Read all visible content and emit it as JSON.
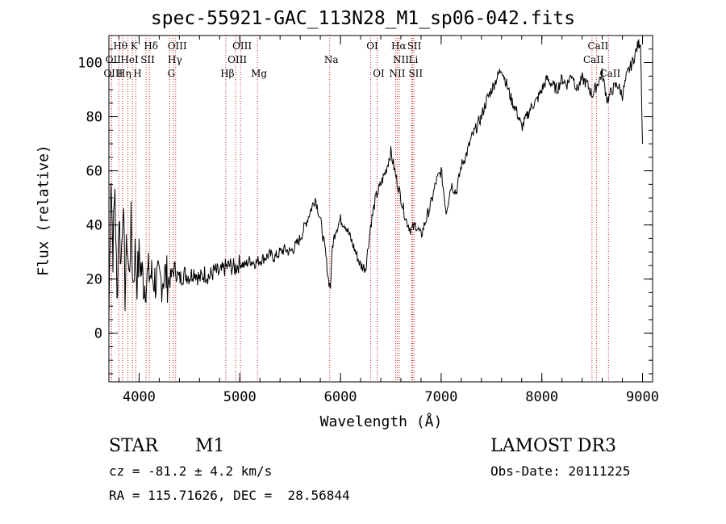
{
  "title": "spec-55921-GAC_113N28_M1_sp06-042.fits",
  "object_type": "STAR",
  "subclass": "M1",
  "survey": "LAMOST DR3",
  "cz": "cz = -81.2 ± 4.2 km/s",
  "obs_date": "Obs-Date: 20111225",
  "coords": "RA = 115.71626, DEC =  28.56844",
  "chart_data": {
    "type": "line",
    "xlabel": "Wavelength (Å)",
    "ylabel": "Flux (relative)",
    "xlim": [
      3700,
      9100
    ],
    "ylim": [
      -18,
      110
    ],
    "x_ticks": [
      4000,
      5000,
      6000,
      7000,
      8000,
      9000
    ],
    "y_ticks": [
      0,
      20,
      40,
      60,
      80,
      100
    ],
    "line_color": "#000000",
    "marker_color": "#cc2222",
    "series": [
      {
        "x": [
          3700,
          3720,
          3740,
          3760,
          3780,
          3800,
          3820,
          3840,
          3860,
          3880,
          3900,
          3920,
          3940,
          3960,
          3980,
          4000,
          4050,
          4100,
          4150,
          4200,
          4250,
          4300,
          4350,
          4400,
          4450,
          4500,
          4550,
          4600,
          4650,
          4700,
          4750,
          4800,
          4850,
          4900,
          4950,
          5000,
          5050,
          5100,
          5150,
          5200,
          5250,
          5300,
          5350,
          5400,
          5450,
          5500,
          5550,
          5600,
          5650,
          5700,
          5750,
          5800,
          5850,
          5880,
          5900,
          5920,
          5950,
          6000,
          6050,
          6100,
          6150,
          6200,
          6250,
          6300,
          6350,
          6400,
          6450,
          6500,
          6550,
          6600,
          6650,
          6700,
          6750,
          6800,
          6850,
          6900,
          6950,
          7000,
          7050,
          7100,
          7150,
          7200,
          7250,
          7300,
          7350,
          7400,
          7450,
          7500,
          7550,
          7600,
          7650,
          7700,
          7750,
          7800,
          7850,
          7900,
          7950,
          8000,
          8050,
          8100,
          8150,
          8200,
          8250,
          8300,
          8350,
          8400,
          8450,
          8500,
          8550,
          8600,
          8650,
          8700,
          8750,
          8800,
          8850,
          8900,
          8950,
          8980,
          9000
        ],
        "y": [
          5,
          60,
          30,
          55,
          10,
          45,
          25,
          50,
          15,
          35,
          20,
          40,
          18,
          30,
          20,
          28,
          18,
          22,
          20,
          18,
          22,
          19,
          24,
          20,
          22,
          21,
          23,
          20,
          22,
          21,
          23,
          22,
          24,
          25,
          24,
          26,
          25,
          27,
          26,
          27,
          28,
          29,
          28,
          30,
          31,
          30,
          32,
          35,
          40,
          45,
          50,
          42,
          30,
          20,
          17,
          32,
          38,
          42,
          40,
          35,
          30,
          25,
          24,
          40,
          50,
          55,
          60,
          67,
          58,
          50,
          42,
          38,
          40,
          36,
          42,
          48,
          56,
          60,
          45,
          55,
          52,
          62,
          66,
          72,
          76,
          80,
          86,
          90,
          94,
          98,
          92,
          86,
          82,
          76,
          80,
          84,
          86,
          90,
          94,
          92,
          90,
          94,
          92,
          96,
          90,
          94,
          92,
          88,
          92,
          96,
          86,
          90,
          92,
          88,
          96,
          100,
          106,
          108,
          70
        ]
      }
    ],
    "lines": [
      {
        "label": "Hθ",
        "x": 3798,
        "row": 0
      },
      {
        "label": "K",
        "x": 3934,
        "row": 0
      },
      {
        "label": "Hδ",
        "x": 4102,
        "row": 0
      },
      {
        "label": "OIII",
        "x": 4363,
        "row": 0
      },
      {
        "label": "OIII",
        "x": 5007,
        "row": 0
      },
      {
        "label": "OI",
        "x": 6300,
        "row": 0
      },
      {
        "label": "Hα",
        "x": 6563,
        "row": 0
      },
      {
        "label": "SII",
        "x": 6717,
        "row": 0
      },
      {
        "label": "CaII",
        "x": 8542,
        "row": 0
      },
      {
        "label": "OII",
        "x": 3727,
        "row": 1
      },
      {
        "label": "HeI",
        "x": 3889,
        "row": 1
      },
      {
        "label": "SII",
        "x": 4069,
        "row": 1
      },
      {
        "label": "Hγ",
        "x": 4340,
        "row": 1
      },
      {
        "label": "OIII",
        "x": 4959,
        "row": 1
      },
      {
        "label": "Na",
        "x": 5893,
        "row": 1
      },
      {
        "label": "NII",
        "x": 6584,
        "row": 1
      },
      {
        "label": "Li",
        "x": 6708,
        "row": 1
      },
      {
        "label": "CaII",
        "x": 8498,
        "row": 1
      },
      {
        "label": "OIII",
        "x": 3727,
        "row": 2
      },
      {
        "label": "Hη",
        "x": 3835,
        "row": 2
      },
      {
        "label": "H",
        "x": 3968,
        "row": 2
      },
      {
        "label": "G",
        "x": 4304,
        "row": 2
      },
      {
        "label": "Hβ",
        "x": 4861,
        "row": 2
      },
      {
        "label": "Mg",
        "x": 5175,
        "row": 2
      },
      {
        "label": "OI",
        "x": 6364,
        "row": 2
      },
      {
        "label": "NII",
        "x": 6548,
        "row": 2
      },
      {
        "label": "SII",
        "x": 6731,
        "row": 2
      },
      {
        "label": "CaII",
        "x": 8662,
        "row": 2
      }
    ]
  }
}
